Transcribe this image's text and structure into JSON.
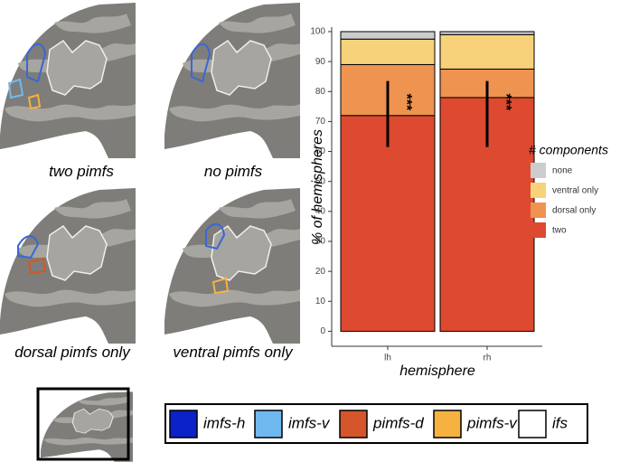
{
  "panels": [
    {
      "caption": "two pimfs"
    },
    {
      "caption": "no pimfs"
    },
    {
      "caption": "dorsal pimfs only"
    },
    {
      "caption": "ventral pimfs only"
    }
  ],
  "region_legend": [
    {
      "label": "imfs-h",
      "color": "#0a22c8"
    },
    {
      "label": "imfs-v",
      "color": "#6fb9f0"
    },
    {
      "label": "pimfs-d",
      "color": "#d4562a"
    },
    {
      "label": "pimfs-v",
      "color": "#f6b241"
    },
    {
      "label": "ifs",
      "color": "#ffffff"
    }
  ],
  "chart_data": {
    "type": "stacked_bar",
    "x_label": "hemisphere",
    "y_label": "% of hemispheres",
    "categories": [
      "lh",
      "rh"
    ],
    "series": [
      {
        "name": "two",
        "color": "#dd4a2f",
        "values": [
          72,
          78
        ]
      },
      {
        "name": "dorsal only",
        "color": "#ef9350",
        "values": [
          17,
          9.5
        ]
      },
      {
        "name": "ventral only",
        "color": "#f7d27a",
        "values": [
          8.5,
          11.5
        ]
      },
      {
        "name": "none",
        "color": "#cccccc",
        "values": [
          2.5,
          1
        ]
      }
    ],
    "legend_title": "# components",
    "error_bars": {
      "values": [
        72.5,
        72.5
      ],
      "errors": [
        11,
        11
      ]
    },
    "annotations": [
      "***",
      "***"
    ],
    "ylim": [
      -5,
      101.5
    ],
    "yticks": [
      0,
      10,
      20,
      30,
      40,
      50,
      60,
      70,
      80,
      90,
      100
    ]
  }
}
